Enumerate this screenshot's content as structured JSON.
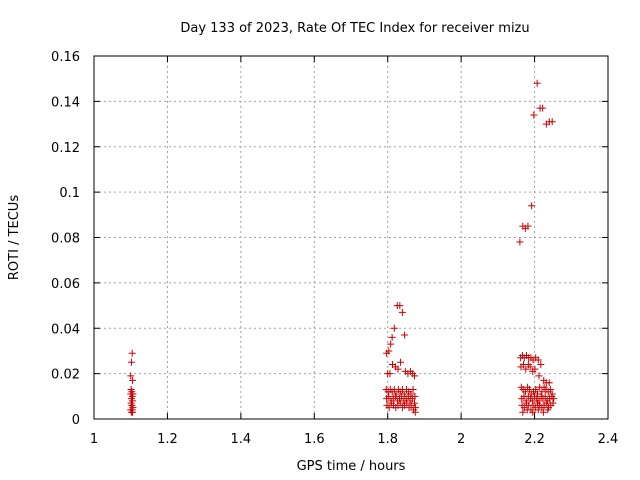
{
  "chart_data": {
    "type": "scatter",
    "title": "Day 133 of 2023, Rate Of TEC Index for receiver mizu",
    "xlabel": "GPS time / hours",
    "ylabel": "ROTI / TECUs",
    "xlim": [
      1,
      2.4
    ],
    "ylim": [
      0,
      0.16
    ],
    "x_ticks": [
      1,
      1.2,
      1.4,
      1.6,
      1.8,
      2,
      2.2,
      2.4
    ],
    "x_tick_labels": [
      "1",
      "1.2",
      "1.4",
      "1.6",
      "1.8",
      "2",
      "2.2",
      "2.4"
    ],
    "y_ticks": [
      0,
      0.02,
      0.04,
      0.06,
      0.08,
      0.1,
      0.12,
      0.14,
      0.16
    ],
    "y_tick_labels": [
      "0",
      "0.02",
      "0.04",
      "0.06",
      "0.08",
      "0.1",
      "0.12",
      "0.14",
      "0.16"
    ],
    "grid": true,
    "marker": "+",
    "series": [
      {
        "color": "#cc0000",
        "points": [
          [
            1.1,
            0.019
          ],
          [
            1.102,
            0.025
          ],
          [
            1.104,
            0.029
          ],
          [
            1.105,
            0.017
          ],
          [
            1.101,
            0.013
          ],
          [
            1.103,
            0.012
          ],
          [
            1.106,
            0.011
          ],
          [
            1.1,
            0.011
          ],
          [
            1.104,
            0.01
          ],
          [
            1.102,
            0.009
          ],
          [
            1.105,
            0.008
          ],
          [
            1.101,
            0.007
          ],
          [
            1.103,
            0.006
          ],
          [
            1.106,
            0.005
          ],
          [
            1.104,
            0.004
          ],
          [
            1.1,
            0.004
          ],
          [
            1.102,
            0.003
          ],
          [
            1.105,
            0.003
          ],
          [
            1.797,
            0.029
          ],
          [
            1.803,
            0.03
          ],
          [
            1.808,
            0.033
          ],
          [
            1.812,
            0.036
          ],
          [
            1.818,
            0.04
          ],
          [
            1.826,
            0.05
          ],
          [
            1.833,
            0.05
          ],
          [
            1.84,
            0.047
          ],
          [
            1.846,
            0.037
          ],
          [
            1.8,
            0.02
          ],
          [
            1.806,
            0.02
          ],
          [
            1.813,
            0.024
          ],
          [
            1.821,
            0.023
          ],
          [
            1.828,
            0.022
          ],
          [
            1.835,
            0.025
          ],
          [
            1.848,
            0.021
          ],
          [
            1.855,
            0.02
          ],
          [
            1.862,
            0.021
          ],
          [
            1.868,
            0.02
          ],
          [
            1.873,
            0.019
          ],
          [
            1.796,
            0.013
          ],
          [
            1.801,
            0.012
          ],
          [
            1.807,
            0.013
          ],
          [
            1.812,
            0.012
          ],
          [
            1.818,
            0.013
          ],
          [
            1.823,
            0.011
          ],
          [
            1.829,
            0.013
          ],
          [
            1.834,
            0.012
          ],
          [
            1.84,
            0.013
          ],
          [
            1.845,
            0.011
          ],
          [
            1.851,
            0.013
          ],
          [
            1.857,
            0.012
          ],
          [
            1.863,
            0.011
          ],
          [
            1.869,
            0.013
          ],
          [
            1.874,
            0.01
          ],
          [
            1.797,
            0.009
          ],
          [
            1.803,
            0.01
          ],
          [
            1.809,
            0.008
          ],
          [
            1.815,
            0.009
          ],
          [
            1.821,
            0.01
          ],
          [
            1.827,
            0.008
          ],
          [
            1.832,
            0.009
          ],
          [
            1.838,
            0.01
          ],
          [
            1.844,
            0.008
          ],
          [
            1.85,
            0.009
          ],
          [
            1.856,
            0.01
          ],
          [
            1.861,
            0.008
          ],
          [
            1.867,
            0.009
          ],
          [
            1.873,
            0.007
          ],
          [
            1.798,
            0.006
          ],
          [
            1.804,
            0.005
          ],
          [
            1.81,
            0.007
          ],
          [
            1.816,
            0.006
          ],
          [
            1.822,
            0.005
          ],
          [
            1.828,
            0.006
          ],
          [
            1.834,
            0.007
          ],
          [
            1.84,
            0.005
          ],
          [
            1.846,
            0.006
          ],
          [
            1.852,
            0.007
          ],
          [
            1.858,
            0.005
          ],
          [
            1.864,
            0.006
          ],
          [
            1.87,
            0.004
          ],
          [
            1.876,
            0.005
          ],
          [
            1.875,
            0.003
          ],
          [
            2.16,
            0.078
          ],
          [
            2.168,
            0.085
          ],
          [
            2.175,
            0.084
          ],
          [
            2.182,
            0.085
          ],
          [
            2.192,
            0.094
          ],
          [
            2.198,
            0.134
          ],
          [
            2.207,
            0.148
          ],
          [
            2.215,
            0.137
          ],
          [
            2.222,
            0.137
          ],
          [
            2.232,
            0.13
          ],
          [
            2.24,
            0.131
          ],
          [
            2.248,
            0.131
          ],
          [
            2.162,
            0.027
          ],
          [
            2.167,
            0.028
          ],
          [
            2.172,
            0.027
          ],
          [
            2.178,
            0.028
          ],
          [
            2.184,
            0.027
          ],
          [
            2.19,
            0.027
          ],
          [
            2.196,
            0.026
          ],
          [
            2.203,
            0.027
          ],
          [
            2.21,
            0.026
          ],
          [
            2.217,
            0.024
          ],
          [
            2.163,
            0.023
          ],
          [
            2.17,
            0.024
          ],
          [
            2.176,
            0.022
          ],
          [
            2.183,
            0.024
          ],
          [
            2.188,
            0.023
          ],
          [
            2.195,
            0.021
          ],
          [
            2.201,
            0.022
          ],
          [
            2.212,
            0.019
          ],
          [
            2.225,
            0.017
          ],
          [
            2.232,
            0.016
          ],
          [
            2.24,
            0.016
          ],
          [
            2.164,
            0.014
          ],
          [
            2.169,
            0.013
          ],
          [
            2.175,
            0.012
          ],
          [
            2.181,
            0.014
          ],
          [
            2.186,
            0.013
          ],
          [
            2.191,
            0.011
          ],
          [
            2.197,
            0.012
          ],
          [
            2.203,
            0.013
          ],
          [
            2.208,
            0.011
          ],
          [
            2.214,
            0.014
          ],
          [
            2.22,
            0.012
          ],
          [
            2.226,
            0.014
          ],
          [
            2.231,
            0.013
          ],
          [
            2.237,
            0.012
          ],
          [
            2.243,
            0.013
          ],
          [
            2.248,
            0.011
          ],
          [
            2.165,
            0.009
          ],
          [
            2.171,
            0.01
          ],
          [
            2.177,
            0.008
          ],
          [
            2.183,
            0.01
          ],
          [
            2.189,
            0.009
          ],
          [
            2.194,
            0.008
          ],
          [
            2.2,
            0.01
          ],
          [
            2.206,
            0.009
          ],
          [
            2.212,
            0.008
          ],
          [
            2.218,
            0.01
          ],
          [
            2.223,
            0.009
          ],
          [
            2.229,
            0.01
          ],
          [
            2.235,
            0.008
          ],
          [
            2.241,
            0.009
          ],
          [
            2.247,
            0.01
          ],
          [
            2.252,
            0.009
          ],
          [
            2.166,
            0.006
          ],
          [
            2.172,
            0.005
          ],
          [
            2.178,
            0.007
          ],
          [
            2.184,
            0.006
          ],
          [
            2.19,
            0.004
          ],
          [
            2.196,
            0.006
          ],
          [
            2.202,
            0.005
          ],
          [
            2.208,
            0.007
          ],
          [
            2.214,
            0.006
          ],
          [
            2.22,
            0.005
          ],
          [
            2.226,
            0.006
          ],
          [
            2.232,
            0.007
          ],
          [
            2.238,
            0.005
          ],
          [
            2.244,
            0.006
          ],
          [
            2.25,
            0.007
          ],
          [
            2.168,
            0.003
          ],
          [
            2.18,
            0.004
          ],
          [
            2.195,
            0.003
          ],
          [
            2.21,
            0.004
          ],
          [
            2.224,
            0.003
          ],
          [
            2.236,
            0.004
          ]
        ]
      }
    ]
  }
}
